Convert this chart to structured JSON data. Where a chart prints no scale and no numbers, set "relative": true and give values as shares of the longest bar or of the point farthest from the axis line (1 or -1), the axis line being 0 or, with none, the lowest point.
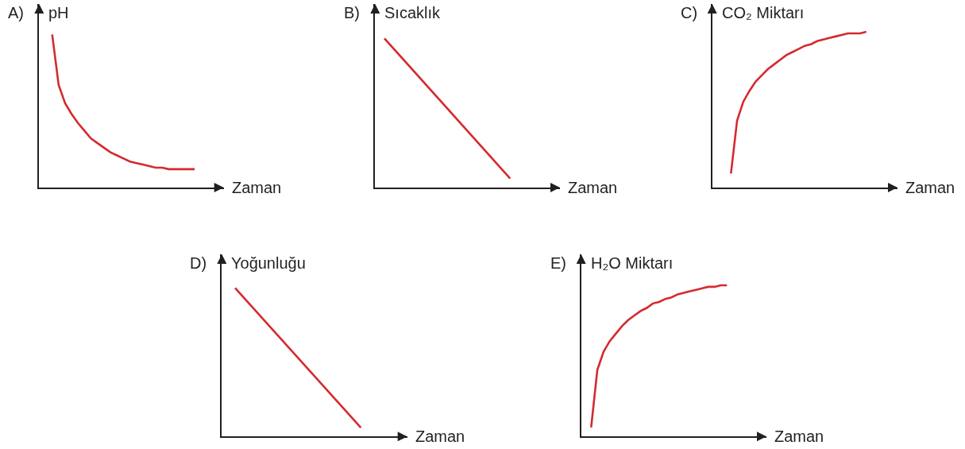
{
  "chart_data": [
    {
      "type": "line",
      "title": "A)",
      "ylabel": "pH",
      "xlabel": "Zaman",
      "relative": true,
      "categories": [
        null,
        null,
        null,
        null,
        null,
        null,
        null,
        null,
        null,
        null,
        null,
        null,
        null,
        null,
        null,
        null,
        null,
        null,
        null,
        null,
        null,
        null,
        null
      ],
      "color": "#d42a2f",
      "values": [
        1.0,
        0.67,
        0.55,
        0.48,
        0.42,
        0.37,
        0.32,
        0.29,
        0.26,
        0.23,
        0.21,
        0.19,
        0.17,
        0.16,
        0.15,
        0.14,
        0.13,
        0.13,
        0.12,
        0.12,
        0.12,
        0.12,
        0.12
      ]
    },
    {
      "type": "line",
      "title": "B)",
      "ylabel": "Sıcaklık",
      "xlabel": "Zaman",
      "relative": true,
      "categories": [
        null,
        null
      ],
      "color": "#d42a2f",
      "values": [
        1.0,
        0.06
      ]
    },
    {
      "type": "line",
      "title": "C)",
      "ylabel": "CO₂ Miktarı",
      "xlabel": "Zaman",
      "relative": true,
      "categories": [
        null,
        null,
        null,
        null,
        null,
        null,
        null,
        null,
        null,
        null,
        null,
        null,
        null,
        null,
        null,
        null,
        null,
        null,
        null,
        null,
        null,
        null,
        null
      ],
      "color": "#d42a2f",
      "values": [
        0.09,
        0.43,
        0.55,
        0.62,
        0.68,
        0.72,
        0.76,
        0.79,
        0.82,
        0.85,
        0.87,
        0.89,
        0.91,
        0.92,
        0.94,
        0.95,
        0.96,
        0.97,
        0.98,
        0.99,
        0.99,
        0.99,
        1.0
      ]
    },
    {
      "type": "line",
      "title": "D)",
      "ylabel": "Yoğunluğu",
      "xlabel": "Zaman",
      "relative": true,
      "categories": [
        null,
        null
      ],
      "color": "#d42a2f",
      "values": [
        1.0,
        0.06
      ]
    },
    {
      "type": "line",
      "title": "E)",
      "ylabel": "H₂O Miktarı",
      "xlabel": "Zaman",
      "relative": true,
      "categories": [
        null,
        null,
        null,
        null,
        null,
        null,
        null,
        null,
        null,
        null,
        null,
        null,
        null,
        null,
        null,
        null,
        null,
        null,
        null,
        null,
        null,
        null,
        null
      ],
      "color": "#d42a2f",
      "values": [
        0.06,
        0.44,
        0.56,
        0.63,
        0.68,
        0.73,
        0.77,
        0.8,
        0.83,
        0.85,
        0.88,
        0.89,
        0.91,
        0.92,
        0.94,
        0.95,
        0.96,
        0.97,
        0.98,
        0.99,
        0.99,
        1.0,
        1.0
      ]
    }
  ]
}
